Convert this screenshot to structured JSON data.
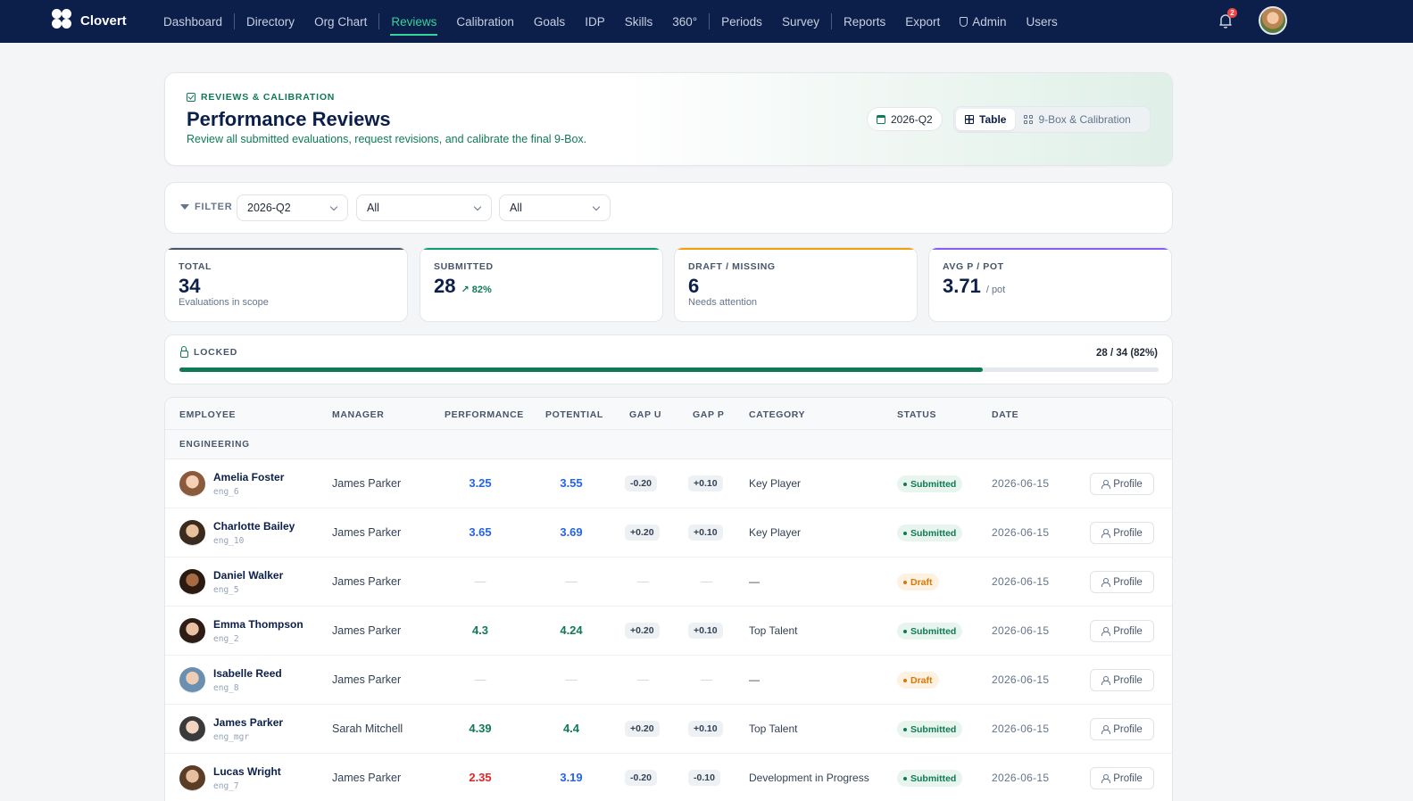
{
  "app": {
    "name": "Clovert"
  },
  "nav": {
    "items": [
      {
        "label": "Dashboard"
      },
      {
        "label": "Directory"
      },
      {
        "label": "Org Chart"
      },
      {
        "label": "Reviews",
        "active": true
      },
      {
        "label": "Calibration"
      },
      {
        "label": "Goals"
      },
      {
        "label": "IDP"
      },
      {
        "label": "Skills"
      },
      {
        "label": "360°"
      },
      {
        "label": "Periods"
      },
      {
        "label": "Survey"
      },
      {
        "label": "Reports"
      },
      {
        "label": "Export"
      },
      {
        "label": "Admin"
      },
      {
        "label": "Users"
      }
    ],
    "notification_count": "2"
  },
  "header": {
    "eyebrow": "REVIEWS & CALIBRATION",
    "title": "Performance Reviews",
    "subtitle": "Review all submitted evaluations, request revisions, and calibrate the final 9-Box.",
    "period": "2026-Q2",
    "views": [
      {
        "label": "Table",
        "active": true
      },
      {
        "label": "9-Box & Calibration",
        "active": false
      }
    ]
  },
  "filters": {
    "label": "FILTER",
    "period": "2026-Q2",
    "department": "All",
    "status": "All"
  },
  "stats": {
    "total": {
      "label": "TOTAL",
      "value": "34",
      "sub": "Evaluations in scope"
    },
    "submitted": {
      "label": "SUBMITTED",
      "value": "28",
      "trend": "82%"
    },
    "draft": {
      "label": "DRAFT / MISSING",
      "value": "6",
      "sub": "Needs attention"
    },
    "avg": {
      "label": "AVG P / POT",
      "value": "3.71",
      "unit": "/ pot"
    }
  },
  "locked": {
    "label": "LOCKED",
    "count_text": "28 / 34 (82%)",
    "progress": 0.82
  },
  "table": {
    "columns": {
      "employee": "EMPLOYEE",
      "manager": "MANAGER",
      "performance": "PERFORMANCE",
      "potential": "POTENTIAL",
      "gap_u": "GAP U",
      "gap_p": "GAP P",
      "category": "CATEGORY",
      "status": "STATUS",
      "date": "DATE"
    },
    "group": "ENGINEERING",
    "profile_label": "Profile",
    "rows": [
      {
        "name": "Amelia Foster",
        "id": "eng_6",
        "manager": "James Parker",
        "performance": "3.25",
        "potential": "3.55",
        "gap_u": "-0.20",
        "gap_p": "+0.10",
        "category": "Key Player",
        "status": "Submitted",
        "date": "2026-06-15"
      },
      {
        "name": "Charlotte Bailey",
        "id": "eng_10",
        "manager": "James Parker",
        "performance": "3.65",
        "potential": "3.69",
        "gap_u": "+0.20",
        "gap_p": "+0.10",
        "category": "Key Player",
        "status": "Submitted",
        "date": "2026-06-15"
      },
      {
        "name": "Daniel Walker",
        "id": "eng_5",
        "manager": "James Parker",
        "performance": "—",
        "potential": "—",
        "gap_u": "—",
        "gap_p": "—",
        "category": "—",
        "status": "Draft",
        "date": "2026-06-15"
      },
      {
        "name": "Emma Thompson",
        "id": "eng_2",
        "manager": "James Parker",
        "performance": "4.3",
        "potential": "4.24",
        "gap_u": "+0.20",
        "gap_p": "+0.10",
        "category": "Top Talent",
        "status": "Submitted",
        "date": "2026-06-15"
      },
      {
        "name": "Isabelle Reed",
        "id": "eng_8",
        "manager": "James Parker",
        "performance": "—",
        "potential": "—",
        "gap_u": "—",
        "gap_p": "—",
        "category": "—",
        "status": "Draft",
        "date": "2026-06-15"
      },
      {
        "name": "James Parker",
        "id": "eng_mgr",
        "manager": "Sarah Mitchell",
        "performance": "4.39",
        "potential": "4.4",
        "gap_u": "+0.20",
        "gap_p": "+0.10",
        "category": "Top Talent",
        "status": "Submitted",
        "date": "2026-06-15"
      },
      {
        "name": "Lucas Wright",
        "id": "eng_7",
        "manager": "James Parker",
        "performance": "2.35",
        "potential": "3.19",
        "gap_u": "-0.20",
        "gap_p": "-0.10",
        "category": "Development in Progress",
        "status": "Submitted",
        "date": "2026-06-15"
      }
    ]
  },
  "colors": {
    "nav_bg": "#0b1f4a",
    "accent": "#0f7a55",
    "submitted_bar": "#0f9f6e",
    "draft_bar": "#f59e0b",
    "avg_bar": "#8b5cf6",
    "total_bar": "#475569"
  }
}
